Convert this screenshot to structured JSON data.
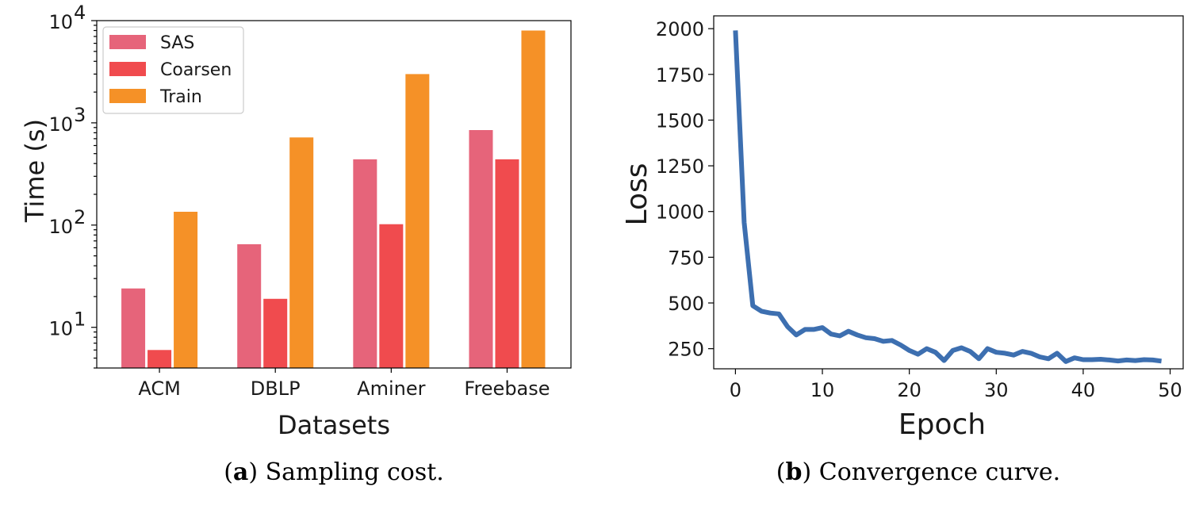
{
  "chart_data": [
    {
      "type": "bar",
      "yscale": "log",
      "categories": [
        "ACM",
        "DBLP",
        "Aminer",
        "Freebase"
      ],
      "series": [
        {
          "name": "SAS",
          "color": "#e6647a",
          "values": [
            24,
            65,
            440,
            850
          ]
        },
        {
          "name": "Coarsen",
          "color": "#f04b4e",
          "values": [
            6,
            19,
            102,
            440
          ]
        },
        {
          "name": "Train",
          "color": "#f59127",
          "values": [
            135,
            720,
            3000,
            8000
          ]
        }
      ],
      "xlabel": "Datasets",
      "ylabel": "Time (s)",
      "ylim": [
        4,
        10000
      ],
      "yticks": [
        10,
        100,
        1000,
        10000
      ],
      "legend_position": "top-left",
      "caption_tag": "a",
      "caption_text": "Sampling cost."
    },
    {
      "type": "line",
      "x": [
        0,
        1,
        2,
        3,
        4,
        5,
        6,
        7,
        8,
        9,
        10,
        11,
        12,
        13,
        14,
        15,
        16,
        17,
        18,
        19,
        20,
        21,
        22,
        23,
        24,
        25,
        26,
        27,
        28,
        29,
        30,
        31,
        32,
        33,
        34,
        35,
        36,
        37,
        38,
        39,
        40,
        41,
        42,
        43,
        44,
        45,
        46,
        47,
        48,
        49
      ],
      "series": [
        {
          "name": "Loss",
          "color": "#3d6fb0",
          "values": [
            1990,
            940,
            485,
            455,
            445,
            440,
            370,
            325,
            355,
            355,
            365,
            330,
            320,
            345,
            325,
            310,
            305,
            290,
            295,
            270,
            240,
            220,
            250,
            230,
            185,
            240,
            255,
            235,
            195,
            250,
            230,
            225,
            215,
            235,
            225,
            205,
            195,
            225,
            180,
            200,
            190,
            190,
            192,
            188,
            183,
            188,
            185,
            190,
            188,
            182
          ]
        }
      ],
      "xlabel": "Epoch",
      "ylabel": "Loss",
      "xlim": [
        -2.5,
        51.5
      ],
      "ylim": [
        140,
        2070
      ],
      "xticks": [
        0,
        10,
        20,
        30,
        40,
        50
      ],
      "yticks": [
        250,
        500,
        750,
        1000,
        1250,
        1500,
        1750,
        2000
      ],
      "caption_tag": "b",
      "caption_text": "Convergence curve."
    }
  ]
}
